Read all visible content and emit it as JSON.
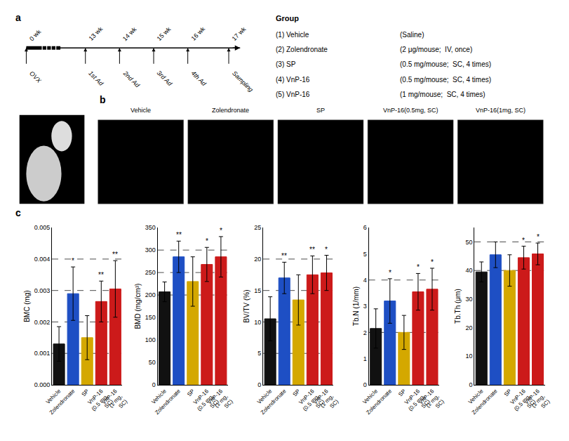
{
  "chart_data": [
    {
      "type": "timeline",
      "title": "a",
      "categories": [
        "0 wk",
        "13 wk",
        "14 wk",
        "15 wk",
        "16 wk",
        "17 wk"
      ],
      "annotations": [
        "OVX",
        "1st Ad",
        "2nd Ad",
        "3rd Ad",
        "4th Ad",
        "Sampling"
      ]
    },
    {
      "type": "table",
      "title": "Group",
      "categories": [
        "(1) Vehicle",
        "(2) Zolendronate",
        "(3) SP",
        "(4) VnP-16",
        "(5) VnP-16"
      ],
      "annotations": [
        "(Saline)",
        "(2 μg/mouse;  IV, once)",
        "(0.5 mg/mouse;  SC, 4 times)",
        "(0.5 mg/mouse;  SC, 4 times)",
        "(1 mg/mouse;  SC, 4 times)"
      ]
    },
    {
      "type": "image",
      "title": "b",
      "categories": [
        "Vehicle",
        "Zolendronate",
        "SP",
        "VnP-16(0.5mg, SC)",
        "VnP-16(1mg, SC)"
      ]
    },
    {
      "type": "bar",
      "title": "c",
      "ylabel": "BMC (mg)",
      "categories": [
        "Vehicle",
        "Zolendronate",
        "SP",
        "VnP-16\n(0.5 mg,\nSC)",
        "VnP-16\n(1 mg,\nSC)"
      ],
      "values": [
        0.0013,
        0.0029,
        0.0015,
        0.00265,
        0.00305
      ],
      "errors": [
        0.00055,
        0.00085,
        0.0007,
        0.00065,
        0.0009
      ],
      "annotations": [
        null,
        "*",
        null,
        "**",
        "**"
      ],
      "reference_lines": [
        0.001,
        0.002,
        0.003,
        0.004
      ],
      "colors": [
        "#111111",
        "#1e4fc4",
        "#d4a800",
        "#cc1a1a",
        "#cc1a1a"
      ],
      "ylim": [
        0,
        0.005
      ],
      "yticks": [
        {
          "value": 0,
          "label": "0.000"
        },
        0.001,
        0.002,
        0.003,
        0.004,
        0.005
      ],
      "grid": false
    },
    {
      "type": "bar",
      "ylabel": "BMD (mg/cm³)",
      "categories": [
        "Vehicle",
        "Zolendronate",
        "SP",
        "VnP-16\n(0.5 mg,\nSC)",
        "VnP-16\n(1 mg,\nSC)"
      ],
      "values": [
        207,
        285,
        230,
        268,
        285
      ],
      "errors": [
        22,
        35,
        55,
        38,
        45
      ],
      "annotations": [
        null,
        "**",
        null,
        "*",
        "*"
      ],
      "reference_lines": [
        200,
        250,
        300
      ],
      "colors": [
        "#111111",
        "#1e4fc4",
        "#d4a800",
        "#cc1a1a",
        "#cc1a1a"
      ],
      "ylim": [
        0,
        350
      ],
      "yticks": [
        0,
        50,
        100,
        150,
        200,
        250,
        300,
        350
      ],
      "grid": false
    },
    {
      "type": "bar",
      "ylabel": "BV/TV (%)",
      "categories": [
        "Vehicle",
        "Zolendronate",
        "SP",
        "VnP-16\n(0.5 mg,\nSC)",
        "VnP-16\n(1 mg,\nSC)"
      ],
      "values": [
        10.5,
        17.0,
        13.5,
        17.5,
        17.8
      ],
      "errors": [
        3.5,
        2.5,
        4.0,
        3.0,
        2.8
      ],
      "annotations": [
        null,
        "**",
        null,
        "**",
        "*"
      ],
      "reference_lines": [
        5,
        10,
        15,
        20
      ],
      "colors": [
        "#111111",
        "#1e4fc4",
        "#d4a800",
        "#cc1a1a",
        "#cc1a1a"
      ],
      "ylim": [
        0,
        25
      ],
      "yticks": [
        0,
        5,
        10,
        15,
        20,
        25
      ],
      "grid": false
    },
    {
      "type": "bar",
      "ylabel": "Tb.N (1/mm)",
      "categories": [
        "Vehicle",
        "Zolendronate",
        "SP",
        "VnP-16\n(0.5 mg,\nSC)",
        "VnP-16\n(1 mg,\nSC)"
      ],
      "values": [
        2.15,
        3.2,
        2.0,
        3.55,
        3.65
      ],
      "errors": [
        0.75,
        0.85,
        0.65,
        0.7,
        0.8
      ],
      "annotations": [
        null,
        "*",
        null,
        "*",
        "*"
      ],
      "reference_lines": [
        2,
        4
      ],
      "colors": [
        "#111111",
        "#1e4fc4",
        "#d4a800",
        "#cc1a1a",
        "#cc1a1a"
      ],
      "ylim": [
        0,
        6
      ],
      "yticks": [
        0,
        1,
        2,
        3,
        4,
        5,
        6
      ],
      "grid": false
    },
    {
      "type": "bar",
      "ylabel": "Tb.Th (μm)",
      "categories": [
        "Vehicle",
        "Zolendronate",
        "SP",
        "VnP-16\n(0.5 mg,\nSC)",
        "VnP-16\n(1 mg,\nSC)"
      ],
      "values": [
        39.5,
        45.5,
        40.0,
        44.5,
        45.8
      ],
      "errors": [
        3.5,
        4.5,
        5.5,
        4.0,
        3.8
      ],
      "annotations": [
        null,
        null,
        null,
        "*",
        "*"
      ],
      "reference_lines": [
        40,
        50
      ],
      "colors": [
        "#111111",
        "#1e4fc4",
        "#d4a800",
        "#cc1a1a",
        "#cc1a1a"
      ],
      "ylim": [
        0,
        55
      ],
      "yticks": [
        0,
        10,
        20,
        30,
        40,
        50
      ],
      "grid": false
    }
  ]
}
